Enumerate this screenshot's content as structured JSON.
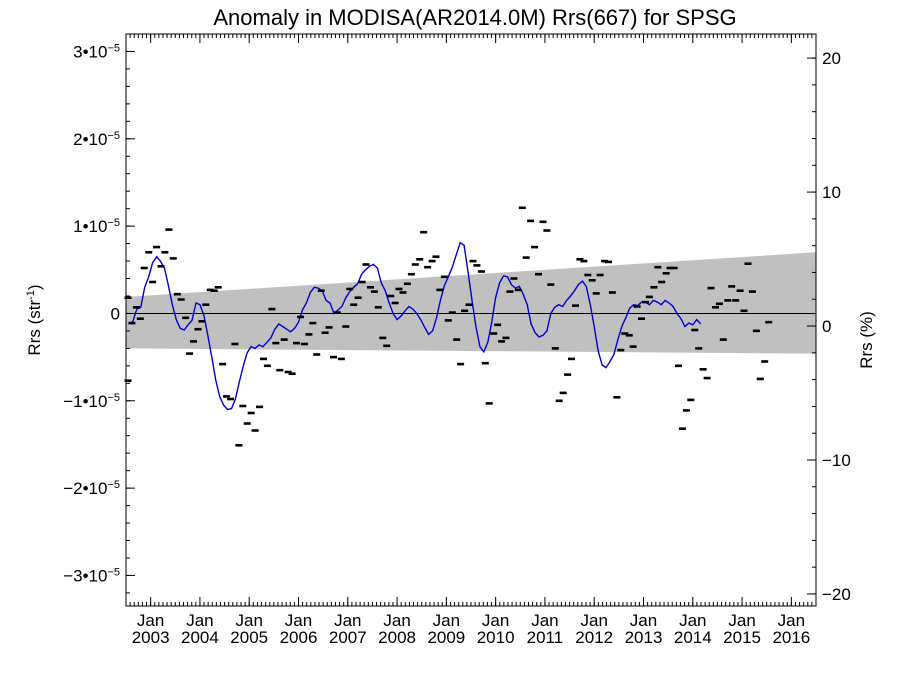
{
  "chart_data": {
    "type": "scatter",
    "title": "Anomaly in MODISA(AR2014.0M) Rrs(667) for SPSG",
    "ylabel_left": "Rrs (str",
    "ylabel_left_sup": "-1",
    "ylabel_left_close": ")",
    "ylabel_right": "Rrs (%)",
    "ylim_left": [
      -3.35e-05,
      3.2e-05
    ],
    "ylim_right": [
      -20.9,
      21.8
    ],
    "xlim": [
      2002.5,
      2016.5
    ],
    "grid": false,
    "legend": "none",
    "colors": {
      "points": "#000000",
      "smooth_line": "#0000cc",
      "band": "#c0c0c0",
      "zero_line": "#000000"
    },
    "left_ticks": [
      {
        "value": 3e-05,
        "mant": "3•10",
        "exp": "−5"
      },
      {
        "value": 2e-05,
        "mant": "2•10",
        "exp": "−5"
      },
      {
        "value": 1e-05,
        "mant": "1•10",
        "exp": "−5"
      },
      {
        "value": 0,
        "mant": "0",
        "exp": ""
      },
      {
        "value": -1e-05,
        "mant": "−1•10",
        "exp": "−5"
      },
      {
        "value": -2e-05,
        "mant": "−2•10",
        "exp": "−5"
      },
      {
        "value": -3e-05,
        "mant": "−3•10",
        "exp": "−5"
      }
    ],
    "right_ticks": [
      {
        "value": 20,
        "label": "20"
      },
      {
        "value": 10,
        "label": "10"
      },
      {
        "value": 0,
        "label": "0"
      },
      {
        "value": -10,
        "label": "−10"
      },
      {
        "value": -20,
        "label": "−20"
      }
    ],
    "x_ticks": [
      {
        "value": 2003.0,
        "month": "Jan",
        "year": "2003"
      },
      {
        "value": 2004.0,
        "month": "Jan",
        "year": "2004"
      },
      {
        "value": 2005.0,
        "month": "Jan",
        "year": "2005"
      },
      {
        "value": 2006.0,
        "month": "Jan",
        "year": "2006"
      },
      {
        "value": 2007.0,
        "month": "Jan",
        "year": "2007"
      },
      {
        "value": 2008.0,
        "month": "Jan",
        "year": "2008"
      },
      {
        "value": 2009.0,
        "month": "Jan",
        "year": "2009"
      },
      {
        "value": 2010.0,
        "month": "Jan",
        "year": "2010"
      },
      {
        "value": 2011.0,
        "month": "Jan",
        "year": "2011"
      },
      {
        "value": 2012.0,
        "month": "Jan",
        "year": "2012"
      },
      {
        "value": 2013.0,
        "month": "Jan",
        "year": "2013"
      },
      {
        "value": 2014.0,
        "month": "Jan",
        "year": "2014"
      },
      {
        "value": 2015.0,
        "month": "Jan",
        "year": "2015"
      },
      {
        "value": 2016.0,
        "month": "Jan",
        "year": "2016"
      }
    ],
    "band": {
      "upper": [
        [
          2002.5,
          1.9e-06
        ],
        [
          2016.5,
          7e-06
        ]
      ],
      "lower": [
        [
          2002.5,
          -4e-06
        ],
        [
          2016.5,
          -4.6e-06
        ]
      ]
    },
    "points": [
      [
        2002.54,
        1.8e-06
      ],
      [
        2002.54,
        -7.7e-06
      ],
      [
        2002.62,
        -1.1e-06
      ],
      [
        2002.71,
        7e-07
      ],
      [
        2002.79,
        -6e-07
      ],
      [
        2002.87,
        5.2e-06
      ],
      [
        2002.96,
        7e-06
      ],
      [
        2003.04,
        3.6e-06
      ],
      [
        2003.12,
        7.6e-06
      ],
      [
        2003.21,
        5.4e-06
      ],
      [
        2003.29,
        7e-06
      ],
      [
        2003.37,
        9.6e-06
      ],
      [
        2003.46,
        6.3e-06
      ],
      [
        2003.54,
        2.2e-06
      ],
      [
        2003.62,
        1.6e-06
      ],
      [
        2003.71,
        -5e-07
      ],
      [
        2003.79,
        -4.6e-06
      ],
      [
        2003.87,
        -3.2e-06
      ],
      [
        2003.96,
        -1.8e-06
      ],
      [
        2004.04,
        -9e-07
      ],
      [
        2004.12,
        1e-06
      ],
      [
        2004.21,
        2.7e-06
      ],
      [
        2004.29,
        2.6e-06
      ],
      [
        2004.37,
        3e-06
      ],
      [
        2004.46,
        -5.8e-06
      ],
      [
        2004.54,
        -9.5e-06
      ],
      [
        2004.62,
        -9.8e-06
      ],
      [
        2004.71,
        -3.5e-06
      ],
      [
        2004.79,
        -1.51e-05
      ],
      [
        2004.87,
        -1.06e-05
      ],
      [
        2004.96,
        -1.26e-05
      ],
      [
        2005.04,
        -1.14e-05
      ],
      [
        2005.12,
        -1.34e-05
      ],
      [
        2005.21,
        -1.07e-05
      ],
      [
        2005.29,
        -5.2e-06
      ],
      [
        2005.37,
        -6e-06
      ],
      [
        2005.46,
        5e-07
      ],
      [
        2005.54,
        -3.4e-06
      ],
      [
        2005.62,
        -6.5e-06
      ],
      [
        2005.71,
        -3e-06
      ],
      [
        2005.79,
        -6.7e-06
      ],
      [
        2005.87,
        -6.9e-06
      ],
      [
        2005.96,
        -3.4e-06
      ],
      [
        2006.04,
        -4e-07
      ],
      [
        2006.12,
        -3.5e-06
      ],
      [
        2006.21,
        -2.4e-06
      ],
      [
        2006.29,
        -1.1e-06
      ],
      [
        2006.37,
        -4.7e-06
      ],
      [
        2006.46,
        2.6e-06
      ],
      [
        2006.54,
        -2.2e-06
      ],
      [
        2006.62,
        -1.6e-06
      ],
      [
        2006.71,
        -5e-06
      ],
      [
        2006.79,
        1e-07
      ],
      [
        2006.87,
        -5.2e-06
      ],
      [
        2006.96,
        -1.5e-06
      ],
      [
        2007.04,
        2.8e-06
      ],
      [
        2007.12,
        1e-06
      ],
      [
        2007.21,
        1.8e-06
      ],
      [
        2007.29,
        3.6e-06
      ],
      [
        2007.37,
        5.6e-06
      ],
      [
        2007.46,
        3e-06
      ],
      [
        2007.54,
        2.5e-06
      ],
      [
        2007.62,
        7e-07
      ],
      [
        2007.71,
        -2.8e-06
      ],
      [
        2007.79,
        -3.7e-06
      ],
      [
        2007.87,
        2e-06
      ],
      [
        2007.96,
        1.2e-06
      ],
      [
        2008.04,
        2.8e-06
      ],
      [
        2008.12,
        2.4e-06
      ],
      [
        2008.21,
        3.4e-06
      ],
      [
        2008.29,
        4.5e-06
      ],
      [
        2008.37,
        5.6e-06
      ],
      [
        2008.46,
        6.2e-06
      ],
      [
        2008.54,
        9.3e-06
      ],
      [
        2008.62,
        5.3e-06
      ],
      [
        2008.71,
        6e-06
      ],
      [
        2008.79,
        6.5e-06
      ],
      [
        2008.87,
        2.7e-06
      ],
      [
        2008.96,
        4.2e-06
      ],
      [
        2009.04,
        -8e-07
      ],
      [
        2009.12,
        1e-07
      ],
      [
        2009.21,
        -3e-06
      ],
      [
        2009.29,
        -5.8e-06
      ],
      [
        2009.37,
        3e-07
      ],
      [
        2009.46,
        1e-06
      ],
      [
        2009.54,
        6e-06
      ],
      [
        2009.62,
        5.5e-06
      ],
      [
        2009.71,
        4.8e-06
      ],
      [
        2009.79,
        -5.7e-06
      ],
      [
        2009.87,
        -1.03e-05
      ],
      [
        2009.96,
        -2.3e-06
      ],
      [
        2010.04,
        -1.3e-06
      ],
      [
        2010.12,
        -3.2e-06
      ],
      [
        2010.21,
        -2.8e-06
      ],
      [
        2010.29,
        2.5e-06
      ],
      [
        2010.37,
        4e-06
      ],
      [
        2010.46,
        2.7e-06
      ],
      [
        2010.54,
        1.21e-05
      ],
      [
        2010.62,
        6.4e-06
      ],
      [
        2010.71,
        1.06e-05
      ],
      [
        2010.79,
        7.6e-06
      ],
      [
        2010.87,
        4.5e-06
      ],
      [
        2010.96,
        1.05e-05
      ],
      [
        2011.04,
        9.5e-06
      ],
      [
        2011.12,
        3.3e-06
      ],
      [
        2011.21,
        -4e-06
      ],
      [
        2011.29,
        -1e-05
      ],
      [
        2011.37,
        -9.1e-06
      ],
      [
        2011.46,
        -7e-06
      ],
      [
        2011.54,
        -5.2e-06
      ],
      [
        2011.62,
        9e-07
      ],
      [
        2011.71,
        6.2e-06
      ],
      [
        2011.79,
        6e-06
      ],
      [
        2011.87,
        4.4e-06
      ],
      [
        2011.96,
        3.8e-06
      ],
      [
        2012.04,
        2.3e-06
      ],
      [
        2012.12,
        4.4e-06
      ],
      [
        2012.21,
        6e-06
      ],
      [
        2012.29,
        5.9e-06
      ],
      [
        2012.37,
        2.4e-06
      ],
      [
        2012.46,
        -9.6e-06
      ],
      [
        2012.54,
        -4.2e-06
      ],
      [
        2012.62,
        -2.3e-06
      ],
      [
        2012.71,
        -2.5e-06
      ],
      [
        2012.79,
        -3.8e-06
      ],
      [
        2012.87,
        8e-07
      ],
      [
        2012.96,
        -6e-07
      ],
      [
        2013.04,
        1.3e-06
      ],
      [
        2013.12,
        1.9e-06
      ],
      [
        2013.21,
        3e-06
      ],
      [
        2013.29,
        5.3e-06
      ],
      [
        2013.37,
        3.6e-06
      ],
      [
        2013.46,
        4.6e-06
      ],
      [
        2013.54,
        5.2e-06
      ],
      [
        2013.62,
        5.2e-06
      ],
      [
        2013.71,
        -6e-06
      ],
      [
        2013.79,
        -1.32e-05
      ],
      [
        2013.87,
        -1.11e-05
      ],
      [
        2013.96,
        -9.9e-06
      ],
      [
        2014.04,
        -1.9e-06
      ],
      [
        2014.12,
        -4e-06
      ],
      [
        2014.21,
        -6.4e-06
      ],
      [
        2014.29,
        -7.4e-06
      ],
      [
        2014.37,
        2.9e-06
      ],
      [
        2014.46,
        7e-07
      ],
      [
        2014.54,
        1.1e-06
      ],
      [
        2014.62,
        -3e-06
      ],
      [
        2014.71,
        1.5e-06
      ],
      [
        2014.79,
        3.1e-06
      ],
      [
        2014.87,
        1.5e-06
      ],
      [
        2014.96,
        2.6e-06
      ],
      [
        2015.04,
        3e-07
      ],
      [
        2015.12,
        5.7e-06
      ],
      [
        2015.21,
        2.5e-06
      ],
      [
        2015.29,
        -2e-06
      ],
      [
        2015.37,
        -7.5e-06
      ],
      [
        2015.46,
        -5.5e-06
      ],
      [
        2015.54,
        -1e-06
      ]
    ],
    "smooth": [
      [
        2002.56,
        -1.2e-06
      ],
      [
        2002.64,
        -9e-07
      ],
      [
        2002.72,
        5e-07
      ],
      [
        2002.8,
        7e-07
      ],
      [
        2002.88,
        3e-06
      ],
      [
        2002.96,
        4.2e-06
      ],
      [
        2003.04,
        5.8e-06
      ],
      [
        2003.12,
        6.5e-06
      ],
      [
        2003.2,
        6e-06
      ],
      [
        2003.28,
        5.2e-06
      ],
      [
        2003.36,
        3.2e-06
      ],
      [
        2003.44,
        1e-06
      ],
      [
        2003.52,
        -7e-07
      ],
      [
        2003.6,
        -1.7e-06
      ],
      [
        2003.68,
        -1.9e-06
      ],
      [
        2003.76,
        -1.3e-06
      ],
      [
        2003.84,
        -8e-07
      ],
      [
        2003.92,
        1.2e-06
      ],
      [
        2004.0,
        1e-06
      ],
      [
        2004.08,
        -2e-07
      ],
      [
        2004.16,
        -2.5e-06
      ],
      [
        2004.24,
        -5e-06
      ],
      [
        2004.32,
        -7.6e-06
      ],
      [
        2004.4,
        -9.5e-06
      ],
      [
        2004.48,
        -1.05e-05
      ],
      [
        2004.56,
        -1.1e-05
      ],
      [
        2004.64,
        -1.09e-05
      ],
      [
        2004.72,
        -9.8e-06
      ],
      [
        2004.8,
        -7.8e-06
      ],
      [
        2004.88,
        -6e-06
      ],
      [
        2004.96,
        -4.5e-06
      ],
      [
        2005.04,
        -3.8e-06
      ],
      [
        2005.12,
        -4e-06
      ],
      [
        2005.2,
        -3.6e-06
      ],
      [
        2005.28,
        -3.8e-06
      ],
      [
        2005.36,
        -3.3e-06
      ],
      [
        2005.44,
        -2.8e-06
      ],
      [
        2005.52,
        -1.8e-06
      ],
      [
        2005.6,
        -1.2e-06
      ],
      [
        2005.68,
        -1.5e-06
      ],
      [
        2005.76,
        -1.8e-06
      ],
      [
        2005.84,
        -2.1e-06
      ],
      [
        2005.92,
        -1.7e-06
      ],
      [
        2006.0,
        -1e-06
      ],
      [
        2006.08,
        4e-07
      ],
      [
        2006.16,
        1.2e-06
      ],
      [
        2006.24,
        2.4e-06
      ],
      [
        2006.32,
        3e-06
      ],
      [
        2006.4,
        2.9e-06
      ],
      [
        2006.48,
        2.6e-06
      ],
      [
        2006.56,
        1.5e-06
      ],
      [
        2006.64,
        1.2e-06
      ],
      [
        2006.72,
        0.0
      ],
      [
        2006.8,
        4e-07
      ],
      [
        2006.88,
        8e-07
      ],
      [
        2006.96,
        1.8e-06
      ],
      [
        2007.04,
        2.5e-06
      ],
      [
        2007.12,
        3e-06
      ],
      [
        2007.2,
        3.4e-06
      ],
      [
        2007.28,
        4.5e-06
      ],
      [
        2007.36,
        5e-06
      ],
      [
        2007.44,
        5.4e-06
      ],
      [
        2007.52,
        5.6e-06
      ],
      [
        2007.6,
        5.2e-06
      ],
      [
        2007.68,
        3.5e-06
      ],
      [
        2007.76,
        2.6e-06
      ],
      [
        2007.84,
        1.2e-06
      ],
      [
        2007.92,
        0.0
      ],
      [
        2008.0,
        -7e-07
      ],
      [
        2008.08,
        -3e-07
      ],
      [
        2008.16,
        3e-07
      ],
      [
        2008.24,
        8e-07
      ],
      [
        2008.32,
        5e-07
      ],
      [
        2008.4,
        0.0
      ],
      [
        2008.48,
        -7e-07
      ],
      [
        2008.56,
        -1.6e-06
      ],
      [
        2008.64,
        -2.4e-06
      ],
      [
        2008.72,
        -2e-06
      ],
      [
        2008.8,
        -5e-07
      ],
      [
        2008.88,
        1.5e-06
      ],
      [
        2008.96,
        3.2e-06
      ],
      [
        2009.04,
        4.2e-06
      ],
      [
        2009.12,
        5.3e-06
      ],
      [
        2009.2,
        6.7e-06
      ],
      [
        2009.28,
        8.1e-06
      ],
      [
        2009.36,
        7.8e-06
      ],
      [
        2009.44,
        4.8e-06
      ],
      [
        2009.52,
        1.5e-06
      ],
      [
        2009.6,
        -1.5e-06
      ],
      [
        2009.68,
        -3.8e-06
      ],
      [
        2009.76,
        -4.4e-06
      ],
      [
        2009.84,
        -3.3e-06
      ],
      [
        2009.92,
        -1e-06
      ],
      [
        2010.0,
        1.8e-06
      ],
      [
        2010.08,
        3.5e-06
      ],
      [
        2010.16,
        4.3e-06
      ],
      [
        2010.24,
        4.2e-06
      ],
      [
        2010.32,
        3.3e-06
      ],
      [
        2010.4,
        2.9e-06
      ],
      [
        2010.48,
        3.1e-06
      ],
      [
        2010.56,
        2.2e-06
      ],
      [
        2010.64,
        1e-06
      ],
      [
        2010.72,
        -1.2e-06
      ],
      [
        2010.8,
        -2.2e-06
      ],
      [
        2010.88,
        -2.7e-06
      ],
      [
        2010.96,
        -2.5e-06
      ],
      [
        2011.04,
        -2e-06
      ],
      [
        2011.12,
        0.0
      ],
      [
        2011.2,
        7e-07
      ],
      [
        2011.28,
        1e-06
      ],
      [
        2011.36,
        8e-07
      ],
      [
        2011.44,
        1.5e-06
      ],
      [
        2011.52,
        2e-06
      ],
      [
        2011.6,
        2.6e-06
      ],
      [
        2011.68,
        3.3e-06
      ],
      [
        2011.76,
        3.7e-06
      ],
      [
        2011.84,
        3.1e-06
      ],
      [
        2011.92,
        1e-06
      ],
      [
        2012.0,
        -1.5e-06
      ],
      [
        2012.08,
        -4.3e-06
      ],
      [
        2012.16,
        -5.9e-06
      ],
      [
        2012.24,
        -6.2e-06
      ],
      [
        2012.32,
        -5.5e-06
      ],
      [
        2012.4,
        -4.7e-06
      ],
      [
        2012.48,
        -3e-06
      ],
      [
        2012.56,
        -1.5e-06
      ],
      [
        2012.64,
        -5e-07
      ],
      [
        2012.72,
        6e-07
      ],
      [
        2012.8,
        1e-06
      ],
      [
        2012.88,
        9e-07
      ],
      [
        2012.96,
        1.3e-06
      ],
      [
        2013.04,
        1.3e-06
      ],
      [
        2013.12,
        1e-06
      ],
      [
        2013.2,
        1.5e-06
      ],
      [
        2013.28,
        1.3e-06
      ],
      [
        2013.36,
        1e-06
      ],
      [
        2013.44,
        1.5e-06
      ],
      [
        2013.52,
        1.2e-06
      ],
      [
        2013.6,
        8e-07
      ],
      [
        2013.68,
        0.0
      ],
      [
        2013.76,
        -6e-07
      ],
      [
        2013.84,
        -1.5e-06
      ],
      [
        2013.92,
        -1.1e-06
      ],
      [
        2014.0,
        -1.3e-06
      ],
      [
        2014.08,
        -7e-07
      ],
      [
        2014.16,
        -1.2e-06
      ]
    ]
  }
}
